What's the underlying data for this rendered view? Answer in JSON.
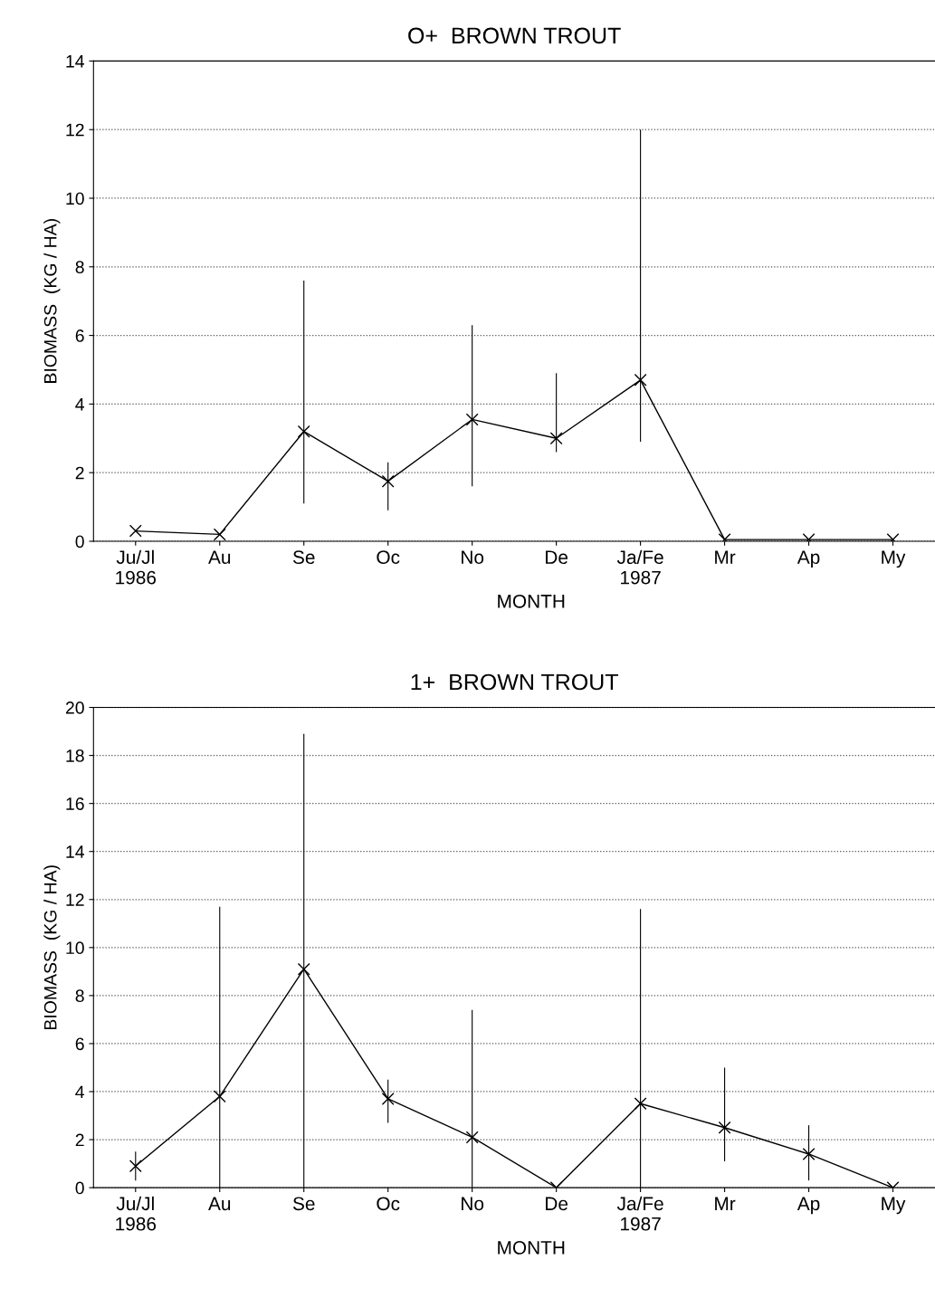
{
  "chart_data": [
    {
      "type": "line",
      "title": "O+  BROWN TROUT",
      "xlabel": "MONTH",
      "ylabel": "BIOMASS  (KG / HA)",
      "categories": [
        "Ju/Jl\n1986",
        "Au",
        "Se",
        "Oc",
        "No",
        "De",
        "Ja/Fe\n1987",
        "Mr",
        "Ap",
        "My"
      ],
      "series": [
        {
          "color": "#000000",
          "values": [
            0.3,
            0.2,
            3.2,
            1.75,
            3.55,
            3.0,
            4.7,
            0.05,
            0.05,
            0.05
          ],
          "errors": [
            null,
            null,
            [
              1.1,
              7.6
            ],
            [
              0.9,
              2.3
            ],
            [
              1.6,
              6.3
            ],
            [
              2.6,
              4.9
            ],
            [
              2.9,
              12.0
            ],
            null,
            null,
            null
          ]
        }
      ],
      "ylim": [
        0,
        14
      ],
      "yticks": [
        0,
        2,
        4,
        6,
        8,
        10,
        12,
        14
      ],
      "grid": "y",
      "marker": "cross",
      "line_style": "solid"
    },
    {
      "type": "line",
      "title": "1+  BROWN TROUT",
      "xlabel": "MONTH",
      "ylabel": "BIOMASS  (KG / HA)",
      "categories": [
        "Ju/Jl\n1986",
        "Au",
        "Se",
        "Oc",
        "No",
        "De",
        "Ja/Fe\n1987",
        "Mr",
        "Ap",
        "My"
      ],
      "series": [
        {
          "color": "#000000",
          "values": [
            0.9,
            3.8,
            9.1,
            3.7,
            2.1,
            0,
            3.5,
            2.5,
            1.4,
            0
          ],
          "errors": [
            [
              0.3,
              1.5
            ],
            [
              0,
              11.7
            ],
            [
              0,
              18.9
            ],
            [
              2.7,
              4.5
            ],
            [
              0,
              7.4
            ],
            null,
            [
              0,
              11.6
            ],
            [
              1.1,
              5.0
            ],
            [
              0.3,
              2.6
            ],
            null
          ]
        }
      ],
      "ylim": [
        0,
        20
      ],
      "yticks": [
        0,
        2,
        4,
        6,
        8,
        10,
        12,
        14,
        16,
        18,
        20
      ],
      "grid": "y",
      "marker": "cross",
      "line_style": "solid"
    }
  ]
}
